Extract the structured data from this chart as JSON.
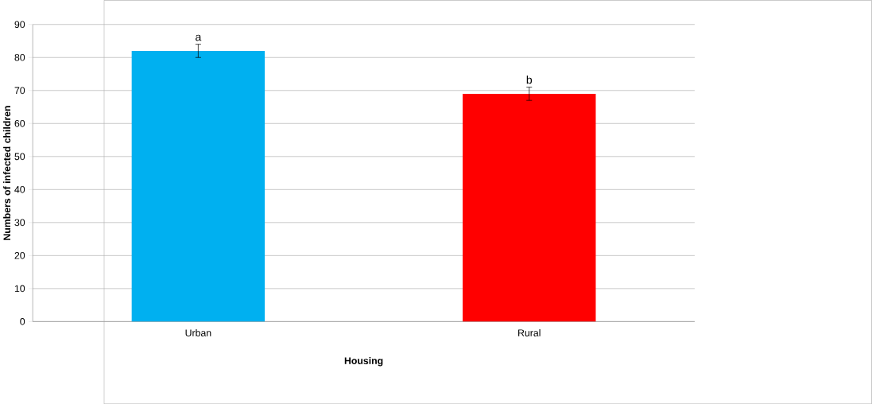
{
  "chart_data": {
    "type": "bar",
    "xlabel": "Housing",
    "ylabel": "Numbers of infected children",
    "categories": [
      "Urban",
      "Rural"
    ],
    "values": [
      82,
      69
    ],
    "colors": [
      "#00b0f0",
      "#ff0000"
    ],
    "errors": [
      2,
      2
    ],
    "ylim": [
      0,
      90
    ],
    "yticks": [
      0,
      10,
      20,
      30,
      40,
      50,
      60,
      70,
      80,
      90
    ],
    "grid": "y",
    "annotations": [
      {
        "text": "a",
        "x": "Urban",
        "y": 84
      },
      {
        "text": "b",
        "x": "Rural",
        "y": 71
      }
    ]
  }
}
